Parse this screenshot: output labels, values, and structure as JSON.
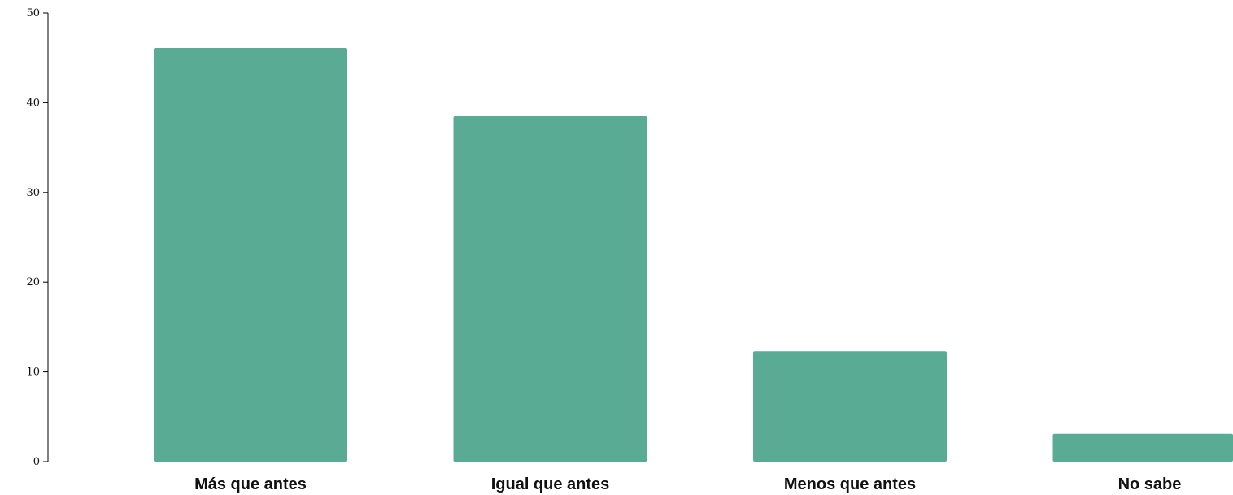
{
  "chart_data": {
    "type": "bar",
    "categories": [
      "Más que antes",
      "Igual que antes",
      "Menos que antes",
      "No sabe"
    ],
    "values": [
      46.1,
      38.5,
      12.3,
      3.1
    ],
    "ylim": [
      0,
      50
    ],
    "yticks": [
      0,
      10,
      20,
      30,
      40,
      50
    ],
    "xlabel": "",
    "ylabel": "",
    "grid": false,
    "legend": "none",
    "bar_color": "#59AC93"
  }
}
